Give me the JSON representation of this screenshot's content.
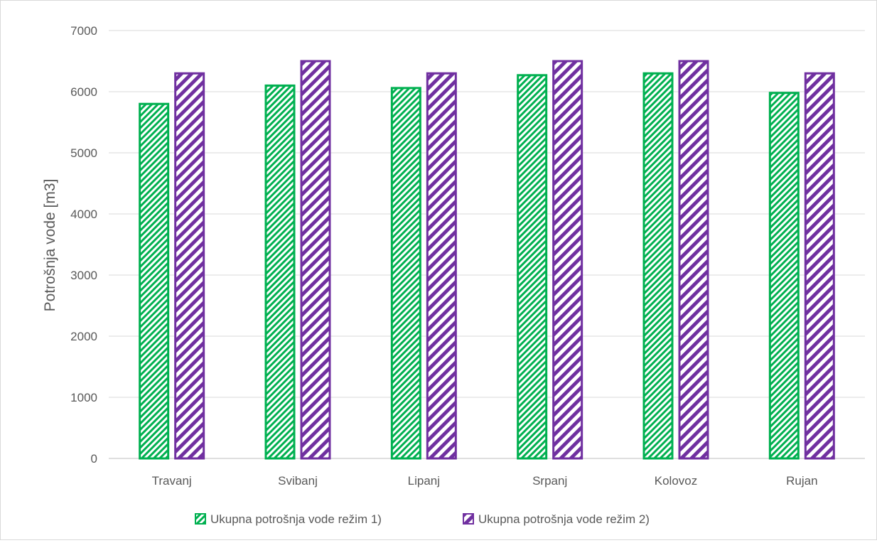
{
  "chart_data": {
    "type": "bar",
    "title": "",
    "xlabel": "",
    "ylabel": "Potrošnja vode [m3]",
    "ylim": [
      0,
      7000
    ],
    "yticks": [
      0,
      1000,
      2000,
      3000,
      4000,
      5000,
      6000,
      7000
    ],
    "grid": true,
    "legend_position": "bottom",
    "categories": [
      "Travanj",
      "Svibanj",
      "Lipanj",
      "Srpanj",
      "Kolovoz",
      "Rujan"
    ],
    "series": [
      {
        "name": "Ukupna potrošnja vode režim 1)",
        "color": "#00b050",
        "pattern": "fine-diagonal-hatch",
        "values": [
          5800,
          6100,
          6060,
          6270,
          6300,
          5980
        ]
      },
      {
        "name": "Ukupna potrošnja vode režim 2)",
        "color": "#7030a0",
        "pattern": "wide-diagonal-hatch",
        "values": [
          6300,
          6500,
          6300,
          6500,
          6500,
          6300
        ]
      }
    ]
  }
}
